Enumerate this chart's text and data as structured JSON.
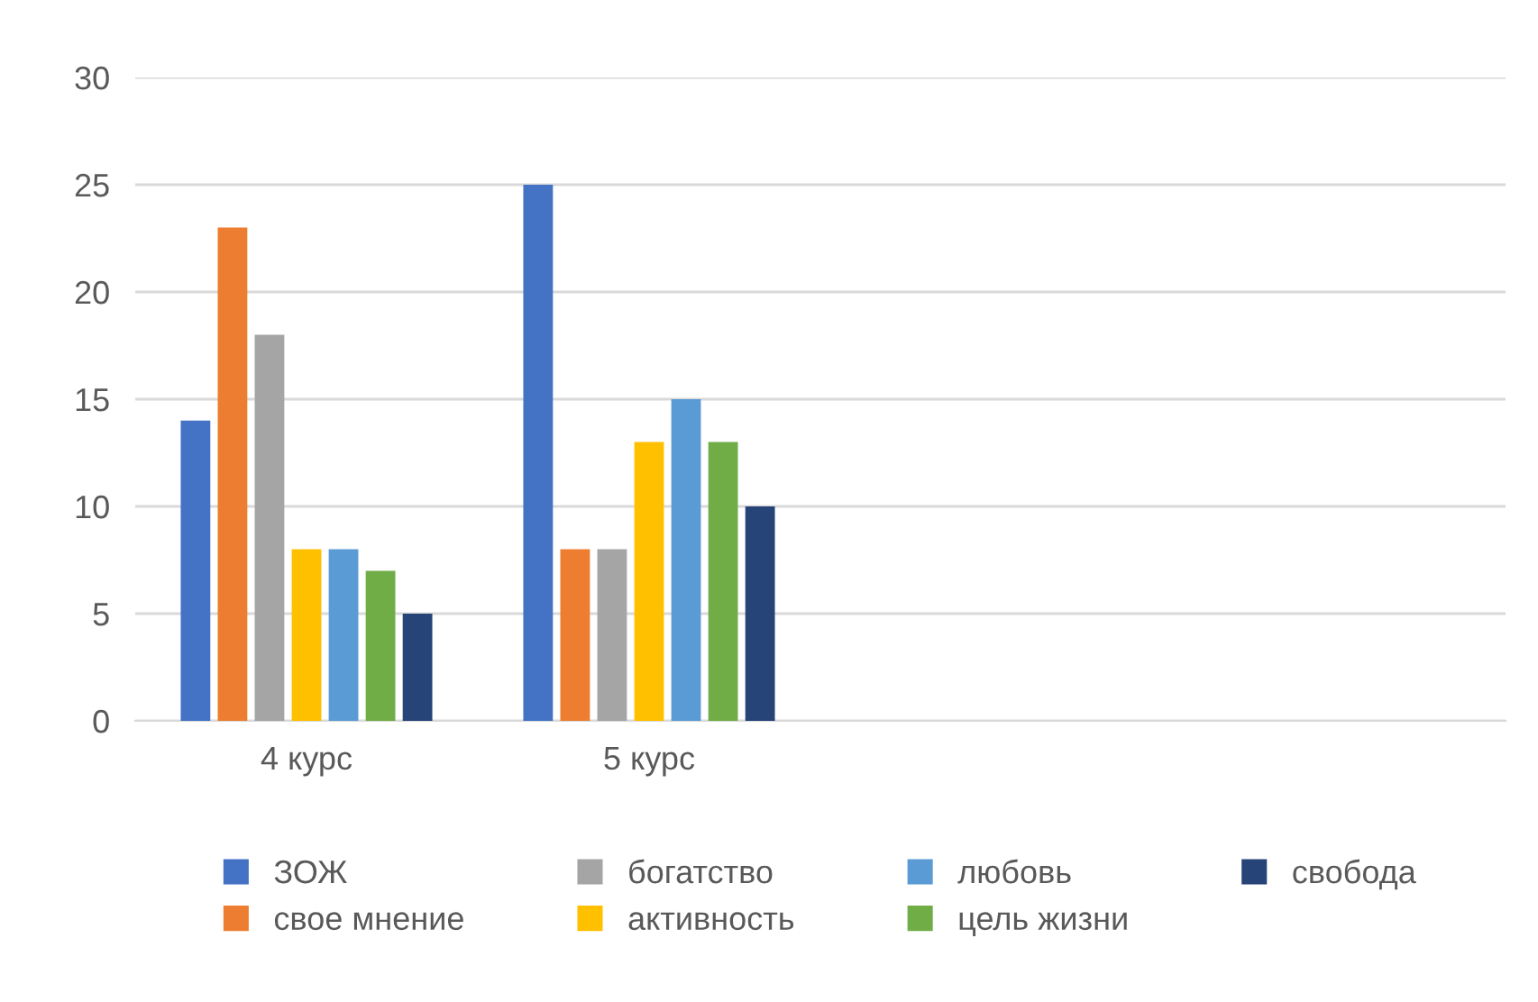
{
  "chart_data": {
    "type": "bar",
    "categories": [
      "4 курс",
      "5 курс",
      null,
      null
    ],
    "series": [
      {
        "name": "ЗОЖ",
        "color": "#4472c4",
        "values": [
          14,
          25,
          null,
          null
        ]
      },
      {
        "name": "свое мнение",
        "color": "#ed7d31",
        "values": [
          23,
          8,
          null,
          null
        ]
      },
      {
        "name": "богатство",
        "color": "#a5a5a5",
        "values": [
          18,
          8,
          null,
          null
        ]
      },
      {
        "name": "активность",
        "color": "#ffc000",
        "values": [
          8,
          13,
          null,
          null
        ]
      },
      {
        "name": "любовь",
        "color": "#5b9bd5",
        "values": [
          8,
          15,
          null,
          null
        ]
      },
      {
        "name": "цель жизни",
        "color": "#70ad47",
        "values": [
          7,
          13,
          null,
          null
        ]
      },
      {
        "name": "свобода",
        "color": "#264478",
        "values": [
          5,
          10,
          null,
          null
        ]
      }
    ],
    "ylim": [
      0,
      30
    ],
    "yticks": [
      0,
      5,
      10,
      15,
      20,
      25,
      30
    ],
    "grid": "y",
    "legend": "bottom"
  }
}
